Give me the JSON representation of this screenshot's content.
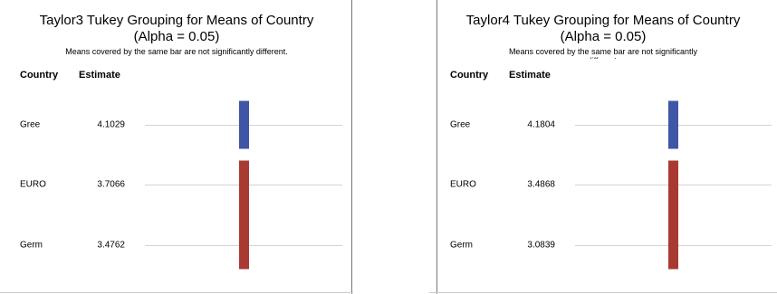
{
  "chart_data": [
    {
      "type": "grouping",
      "title": "Taylor3 Tukey Grouping for Means of Country",
      "subtitle": "(Alpha = 0.05)",
      "note": "Means covered by the same bar are not significantly different.",
      "headers": [
        "Country",
        "Estimate"
      ],
      "categories": [
        "Gree",
        "EURO",
        "Germ"
      ],
      "values": [
        4.1029,
        3.7066,
        3.4762
      ],
      "groups": [
        {
          "color": "#3f55a5",
          "rows": [
            0
          ]
        },
        {
          "color": "#a83a32",
          "rows": [
            1,
            2
          ]
        }
      ]
    },
    {
      "type": "grouping",
      "title": "Taylor4 Tukey Grouping for Means of Country",
      "subtitle": "(Alpha = 0.05)",
      "note": "Means covered by the same bar are not significantly different.",
      "headers": [
        "Country",
        "Estimate"
      ],
      "categories": [
        "Gree",
        "EURO",
        "Germ"
      ],
      "values": [
        4.1804,
        3.4868,
        3.0839
      ],
      "groups": [
        {
          "color": "#3f55a5",
          "rows": [
            0
          ]
        },
        {
          "color": "#a83a32",
          "rows": [
            1,
            2
          ]
        }
      ]
    }
  ]
}
